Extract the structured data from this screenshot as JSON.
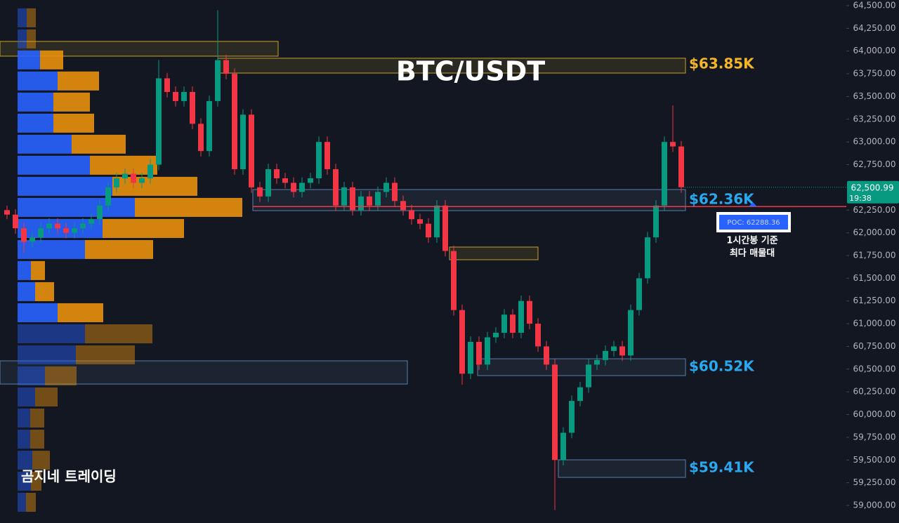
{
  "chart_data": {
    "type": "candlestick",
    "title": "BTC/USDT",
    "watermark": "곰지네 트레이딩",
    "up_color": "#089981",
    "down_color": "#f23645",
    "ylim": [
      59000,
      64500
    ],
    "yticks": [
      {
        "value": 64500,
        "label": "64,500.00"
      },
      {
        "value": 64250,
        "label": "64,250.00"
      },
      {
        "value": 64000,
        "label": "64,000.00"
      },
      {
        "value": 63750,
        "label": "63,750.00"
      },
      {
        "value": 63500,
        "label": "63,500.00"
      },
      {
        "value": 63250,
        "label": "63,250.00"
      },
      {
        "value": 63000,
        "label": "63,000.00"
      },
      {
        "value": 62750,
        "label": "62,750.00"
      },
      {
        "value": 62500,
        "label": "62,500.00"
      },
      {
        "value": 62250,
        "label": "62,250.00"
      },
      {
        "value": 62000,
        "label": "62,000.00"
      },
      {
        "value": 61750,
        "label": "61,750.00"
      },
      {
        "value": 61500,
        "label": "61,500.00"
      },
      {
        "value": 61250,
        "label": "61,250.00"
      },
      {
        "value": 61000,
        "label": "61,000.00"
      },
      {
        "value": 60750,
        "label": "60,750.00"
      },
      {
        "value": 60500,
        "label": "60,500.00"
      },
      {
        "value": 60250,
        "label": "60,250.00"
      },
      {
        "value": 60000,
        "label": "60,000.00"
      },
      {
        "value": 59750,
        "label": "59,750.00"
      },
      {
        "value": 59500,
        "label": "59,500.00"
      },
      {
        "value": 59250,
        "label": "59,250.00"
      },
      {
        "value": 59000,
        "label": "59,000.00"
      }
    ],
    "candles": [
      [
        62250,
        62300,
        62150,
        62200
      ],
      [
        62200,
        62260,
        61990,
        62050
      ],
      [
        62050,
        62110,
        61780,
        61900
      ],
      [
        61900,
        62010,
        61840,
        61950
      ],
      [
        61950,
        62110,
        61890,
        62050
      ],
      [
        62050,
        62160,
        61990,
        62100
      ],
      [
        62100,
        62160,
        61990,
        62050
      ],
      [
        62050,
        62110,
        61940,
        62000
      ],
      [
        62000,
        62110,
        61940,
        62050
      ],
      [
        62050,
        62160,
        61990,
        62100
      ],
      [
        62100,
        62210,
        62040,
        62150
      ],
      [
        62150,
        62360,
        62090,
        62300
      ],
      [
        62300,
        62560,
        62240,
        62500
      ],
      [
        62500,
        62660,
        62440,
        62600
      ],
      [
        62600,
        62710,
        62540,
        62650
      ],
      [
        62650,
        62710,
        62490,
        62550
      ],
      [
        62550,
        62660,
        62490,
        62600
      ],
      [
        62600,
        62810,
        62540,
        62750
      ],
      [
        62750,
        63900,
        62690,
        63700
      ],
      [
        63700,
        63760,
        63490,
        63550
      ],
      [
        63550,
        63610,
        63390,
        63450
      ],
      [
        63450,
        63610,
        63390,
        63550
      ],
      [
        63550,
        63610,
        63140,
        63200
      ],
      [
        63200,
        63260,
        62840,
        62900
      ],
      [
        62900,
        63510,
        62840,
        63450
      ],
      [
        63450,
        64450,
        63390,
        63900
      ],
      [
        63900,
        63960,
        63690,
        63750
      ],
      [
        63750,
        63810,
        62640,
        62700
      ],
      [
        62700,
        63360,
        62640,
        63300
      ],
      [
        63300,
        63360,
        62440,
        62500
      ],
      [
        62500,
        62560,
        62340,
        62400
      ],
      [
        62400,
        62760,
        62340,
        62700
      ],
      [
        62700,
        62760,
        62540,
        62600
      ],
      [
        62600,
        62660,
        62490,
        62550
      ],
      [
        62550,
        62610,
        62390,
        62450
      ],
      [
        62450,
        62610,
        62390,
        62550
      ],
      [
        62550,
        62660,
        62490,
        62600
      ],
      [
        62600,
        63060,
        62540,
        63000
      ],
      [
        63000,
        63060,
        62640,
        62700
      ],
      [
        62700,
        62760,
        62240,
        62300
      ],
      [
        62300,
        62560,
        62240,
        62500
      ],
      [
        62500,
        62560,
        62190,
        62250
      ],
      [
        62250,
        62460,
        62190,
        62400
      ],
      [
        62400,
        62460,
        62240,
        62300
      ],
      [
        62300,
        62510,
        62240,
        62450
      ],
      [
        62450,
        62610,
        62390,
        62550
      ],
      [
        62550,
        62610,
        62290,
        62350
      ],
      [
        62350,
        62410,
        62190,
        62250
      ],
      [
        62250,
        62310,
        62090,
        62150
      ],
      [
        62150,
        62210,
        62040,
        62100
      ],
      [
        62100,
        62160,
        61890,
        61950
      ],
      [
        61950,
        62360,
        61890,
        62300
      ],
      [
        62300,
        62360,
        61740,
        61800
      ],
      [
        61800,
        61860,
        61090,
        61150
      ],
      [
        61150,
        61210,
        60330,
        60450
      ],
      [
        60450,
        60860,
        60390,
        60800
      ],
      [
        60800,
        60860,
        60490,
        60550
      ],
      [
        60550,
        60910,
        60490,
        60850
      ],
      [
        60850,
        60960,
        60790,
        60900
      ],
      [
        60900,
        61160,
        60840,
        61100
      ],
      [
        61100,
        61160,
        60840,
        60900
      ],
      [
        60900,
        61310,
        60840,
        61250
      ],
      [
        61250,
        61310,
        60940,
        61000
      ],
      [
        61000,
        61060,
        60690,
        60750
      ],
      [
        60750,
        60810,
        60490,
        60550
      ],
      [
        60550,
        60610,
        58950,
        59500
      ],
      [
        59500,
        59860,
        59440,
        59800
      ],
      [
        59800,
        60210,
        59740,
        60150
      ],
      [
        60150,
        60360,
        60090,
        60300
      ],
      [
        60300,
        60610,
        60240,
        60550
      ],
      [
        60550,
        60660,
        60490,
        60600
      ],
      [
        60600,
        60760,
        60540,
        60700
      ],
      [
        60700,
        60810,
        60640,
        60750
      ],
      [
        60750,
        60810,
        60590,
        60650
      ],
      [
        60650,
        61210,
        60590,
        61150
      ],
      [
        61150,
        61560,
        61090,
        61500
      ],
      [
        61500,
        62010,
        61440,
        61950
      ],
      [
        61950,
        62360,
        61890,
        62300
      ],
      [
        62300,
        63060,
        62240,
        63000
      ],
      [
        63000,
        63400,
        62890,
        62950
      ],
      [
        62950,
        63010,
        62440,
        62500.99
      ]
    ],
    "volume_profile": {
      "bins": [
        64470,
        64238,
        64006,
        63775,
        63543,
        63311,
        63079,
        62848,
        62616,
        62384,
        62152,
        61920,
        61689,
        61457,
        61225,
        60993,
        60761,
        60530,
        60298,
        60066,
        59834,
        59602,
        59371,
        59139,
        58907
      ],
      "buy_color": "#2962ff",
      "sell_color": "#e8900c",
      "buy": [
        13,
        13,
        32,
        57,
        51,
        51,
        77,
        103,
        135,
        167,
        121,
        96,
        19,
        25,
        57,
        96,
        83,
        39,
        25,
        18,
        18,
        21,
        19,
        12
      ],
      "sell": [
        13,
        13,
        33,
        59,
        52,
        58,
        77,
        96,
        121,
        153,
        116,
        97,
        20,
        27,
        65,
        96,
        84,
        45,
        32,
        20,
        20,
        25,
        15,
        14
      ]
    },
    "zones": [
      {
        "low": 63944,
        "high": 64106,
        "color": "#c9a227"
      },
      {
        "low": 63758,
        "high": 63921,
        "color": "#c9a227"
      },
      {
        "low": 62244,
        "high": 62476,
        "color": "#5b7fa6"
      },
      {
        "low": 61704,
        "high": 61843,
        "color": "#c9a227"
      },
      {
        "low": 60429,
        "high": 60614,
        "color": "#5b7fa6"
      },
      {
        "low": 60336,
        "high": 60591,
        "color": "#5b7fa6"
      },
      {
        "low": 59309,
        "high": 59502,
        "color": "#5b7fa6"
      }
    ],
    "levels": [
      {
        "value": 63850,
        "label": "$63.85K",
        "color": "#f5b528"
      },
      {
        "value": 62360,
        "label": "$62.36K",
        "color": "#29a8f0"
      },
      {
        "value": 60520,
        "label": "$60.52K",
        "color": "#29a8f0"
      },
      {
        "value": 59410,
        "label": "$59.41K",
        "color": "#29a8f0"
      }
    ],
    "poc": {
      "value": 62288.36,
      "label": "POC: 62288.36",
      "color": "#f23645"
    },
    "note": [
      "1시간봉 기준",
      "최다 매물대"
    ],
    "last_price": {
      "value": 62500.99,
      "label": "62,500.99"
    },
    "countdown": "19:38"
  }
}
